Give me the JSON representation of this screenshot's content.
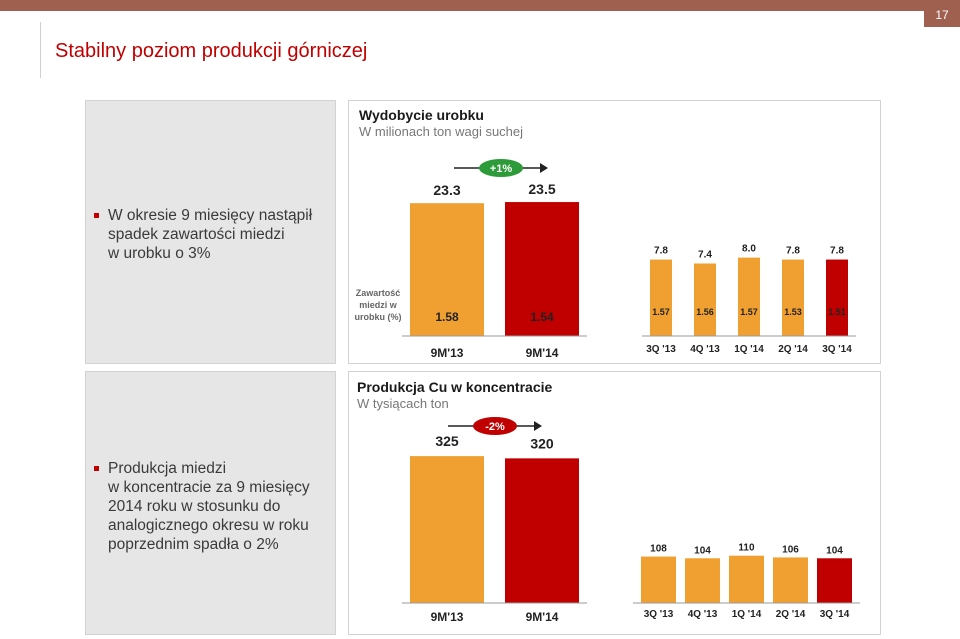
{
  "page": {
    "number": "17",
    "title": "Stabilny poziom produkcji górniczej"
  },
  "colors": {
    "accent": "#c00000",
    "orange": "#f0a030",
    "red": "#c00000",
    "green": "#2e9b3a",
    "topbar": "#a0604f"
  },
  "bullets": {
    "top": [
      "W okresie 9 miesięcy nastąpił",
      "spadek zawartości miedzi",
      "w urobku o 3%"
    ],
    "bottom": [
      "Produkcja miedzi",
      "w koncentracie za 9 miesięcy",
      "2014 roku w stosunku  do",
      "analogicznego okresu w roku",
      "poprzednim spadła o 2%"
    ]
  },
  "chart_data": [
    {
      "type": "bar",
      "title": "Wydobycie urobku",
      "subtitle": "W milionach ton wagi suchej",
      "annotation": "+1%",
      "groups": [
        {
          "categories": [
            "9M'13",
            "9M'14"
          ],
          "values": [
            23.3,
            23.5
          ],
          "labels": [
            "23.3",
            "23.5"
          ],
          "colors": [
            "#f0a030",
            "#c00000"
          ]
        },
        {
          "categories": [
            "3Q '13",
            "4Q '13",
            "1Q '14",
            "2Q '14",
            "3Q '14"
          ],
          "values": [
            7.8,
            7.4,
            8.0,
            7.8,
            7.8
          ],
          "labels": [
            "7.8",
            "7.4",
            "8.0",
            "7.8",
            "7.8"
          ],
          "colors": [
            "#f0a030",
            "#f0a030",
            "#f0a030",
            "#f0a030",
            "#c00000"
          ]
        }
      ],
      "row_label": [
        "Zawartość",
        "miedzi w",
        "urobku (%)"
      ],
      "row_values": {
        "group1": [
          "1.58",
          "1.54"
        ],
        "group2": [
          "1.57",
          "1.56",
          "1.57",
          "1.53",
          "1.51"
        ]
      }
    },
    {
      "type": "bar",
      "title": "Produkcja Cu w koncentracie",
      "subtitle": "W tysiącach ton",
      "annotation": "-2%",
      "groups": [
        {
          "categories": [
            "9M'13",
            "9M'14"
          ],
          "values": [
            325,
            320
          ],
          "labels": [
            "325",
            "320"
          ],
          "colors": [
            "#f0a030",
            "#c00000"
          ]
        },
        {
          "categories": [
            "3Q '13",
            "4Q '13",
            "1Q '14",
            "2Q '14",
            "3Q '14"
          ],
          "values": [
            108,
            104,
            110,
            106,
            104
          ],
          "labels": [
            "108",
            "104",
            "110",
            "106",
            "104"
          ],
          "colors": [
            "#f0a030",
            "#f0a030",
            "#f0a030",
            "#f0a030",
            "#c00000"
          ]
        }
      ]
    }
  ]
}
